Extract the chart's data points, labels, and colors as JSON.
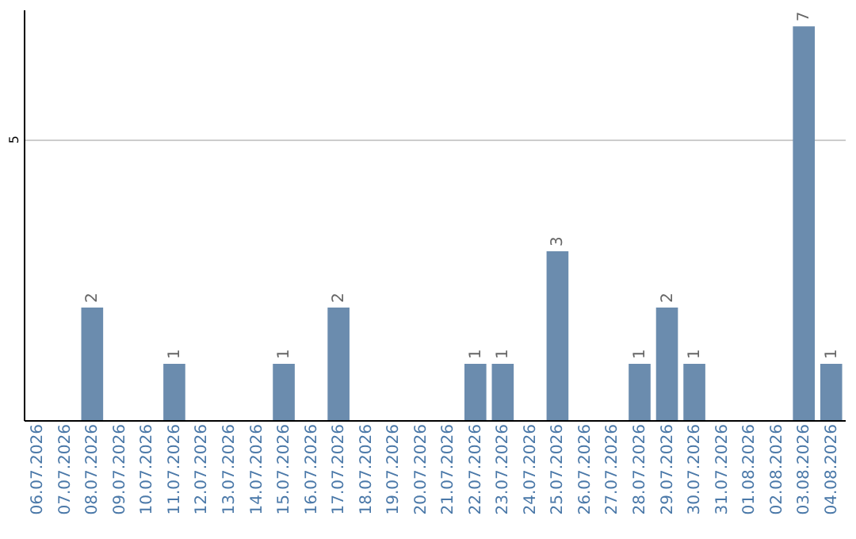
{
  "chart_data": {
    "type": "bar",
    "categories": [
      "06.07.2026",
      "07.07.2026",
      "08.07.2026",
      "09.07.2026",
      "10.07.2026",
      "11.07.2026",
      "12.07.2026",
      "13.07.2026",
      "14.07.2026",
      "15.07.2026",
      "16.07.2026",
      "17.07.2026",
      "18.07.2026",
      "19.07.2026",
      "20.07.2026",
      "21.07.2026",
      "22.07.2026",
      "23.07.2026",
      "24.07.2026",
      "25.07.2026",
      "26.07.2026",
      "27.07.2026",
      "28.07.2026",
      "29.07.2026",
      "30.07.2026",
      "31.07.2026",
      "01.08.2026",
      "02.08.2026",
      "03.08.2026",
      "04.08.2026"
    ],
    "values": [
      null,
      null,
      2,
      null,
      null,
      1,
      null,
      null,
      null,
      1,
      null,
      2,
      null,
      null,
      null,
      null,
      1,
      1,
      null,
      3,
      null,
      null,
      1,
      2,
      1,
      null,
      null,
      null,
      7,
      1
    ],
    "color": "#6b8cae",
    "ylim": [
      0,
      7.3
    ],
    "yticks": [
      5
    ],
    "grid": "y",
    "data_labels": true
  }
}
